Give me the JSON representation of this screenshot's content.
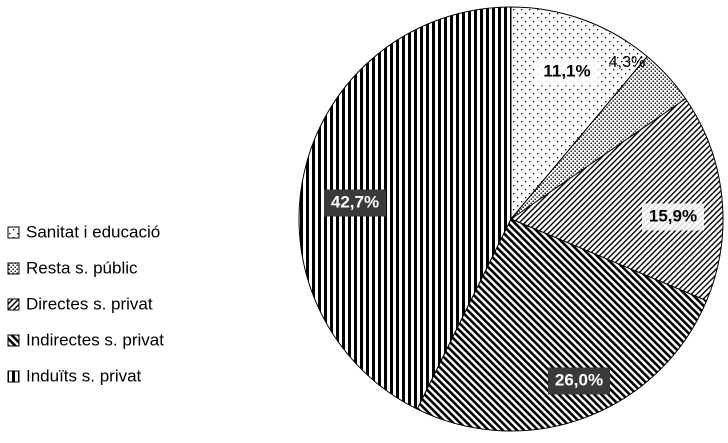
{
  "chart_data": {
    "type": "pie",
    "title": "",
    "start_angle_deg": 0,
    "direction": "clockwise",
    "legend_position": "left",
    "slices": [
      {
        "label": "Sanitat i educació",
        "value": 11.1,
        "display": "11,1%",
        "pattern": "sparse-dots",
        "label_style": "light"
      },
      {
        "label": "Resta s. públic",
        "value": 4.3,
        "display": "4,3%",
        "pattern": "dense-dots",
        "label_style": "outside"
      },
      {
        "label": "Directes s. privat",
        "value": 15.9,
        "display": "15,9%",
        "pattern": "fine-diagonal",
        "label_style": "light"
      },
      {
        "label": "Indirectes s. privat",
        "value": 26.0,
        "display": "26,0%",
        "pattern": "bold-diagonal",
        "label_style": "dark"
      },
      {
        "label": "Induïts s. privat",
        "value": 42.7,
        "display": "42,7%",
        "pattern": "vertical-stripes",
        "label_style": "dark"
      }
    ]
  }
}
